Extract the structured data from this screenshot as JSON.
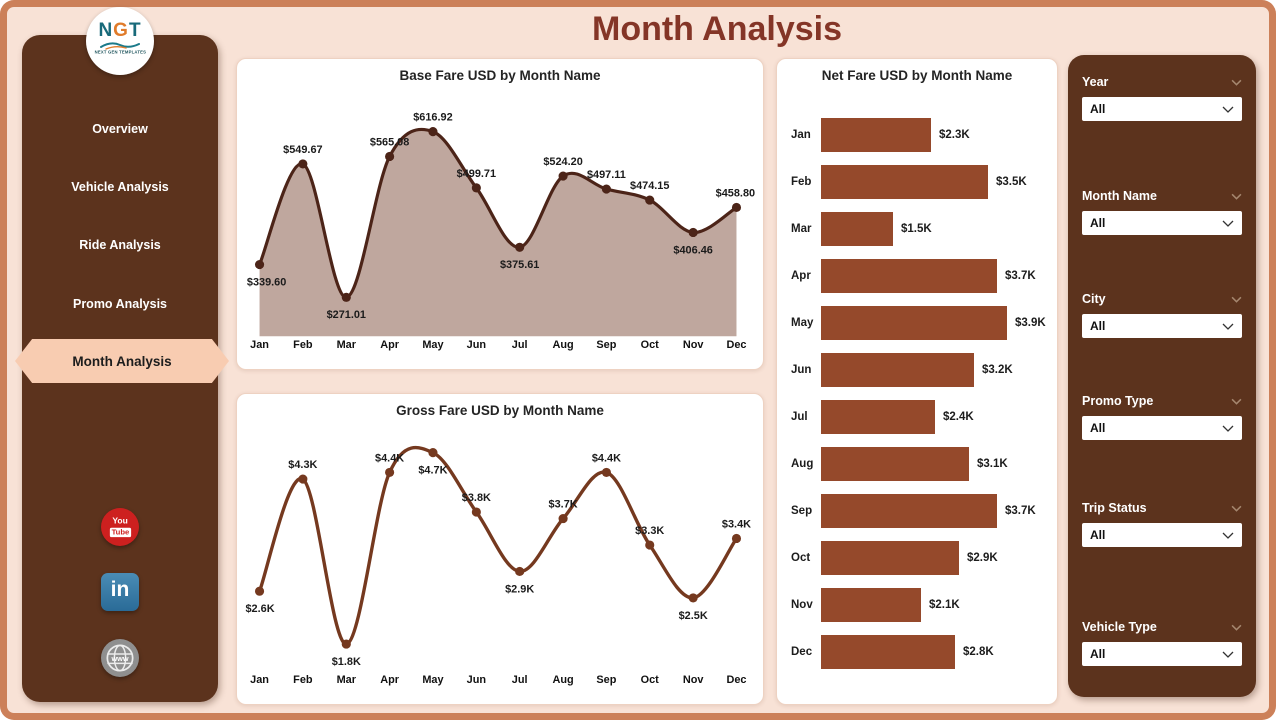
{
  "page": {
    "title": "Month Analysis"
  },
  "logo": {
    "letters": [
      "N",
      "G",
      "T"
    ],
    "caption": "NEXT GEN TEMPLATES"
  },
  "sidebar": {
    "items": [
      {
        "label": "Overview",
        "active": false
      },
      {
        "label": "Vehicle Analysis",
        "active": false
      },
      {
        "label": "Ride Analysis",
        "active": false
      },
      {
        "label": "Promo Analysis",
        "active": false
      },
      {
        "label": "Month Analysis",
        "active": true
      }
    ]
  },
  "socials": {
    "youtube_line1": "You",
    "youtube_line2": "Tube",
    "linkedin_text": "in",
    "website_text": "www"
  },
  "filters": [
    {
      "label": "Year",
      "value": "All"
    },
    {
      "label": "Month Name",
      "value": "All"
    },
    {
      "label": "City",
      "value": "All"
    },
    {
      "label": "Promo Type",
      "value": "All"
    },
    {
      "label": "Trip Status",
      "value": "All"
    },
    {
      "label": "Vehicle Type",
      "value": "All"
    }
  ],
  "colors": {
    "frame": "#cc8059",
    "page_bg": "#f8e2d6",
    "panel": "#5c331d",
    "active_nav": "#f8ccb1",
    "title": "#843527",
    "bar": "#95492b",
    "base_line": "#4c2418",
    "area_fill": "#bfa79e",
    "gross_line": "#75391f"
  },
  "chart_data": [
    {
      "id": "base-fare",
      "type": "area",
      "title": "Base Fare USD by Month Name",
      "xlabel": "",
      "ylabel": "Base Fare USD",
      "categories": [
        "Jan",
        "Feb",
        "Mar",
        "Apr",
        "May",
        "Jun",
        "Jul",
        "Aug",
        "Sep",
        "Oct",
        "Nov",
        "Dec"
      ],
      "values": [
        339.6,
        549.67,
        271.01,
        565.08,
        616.92,
        499.71,
        375.61,
        524.2,
        497.11,
        474.15,
        406.46,
        458.8
      ],
      "labels": [
        "$339.60",
        "$549.67",
        "$271.01",
        "$565.08",
        "$616.92",
        "$499.71",
        "$375.61",
        "$524.20",
        "$497.11",
        "$474.15",
        "$406.46",
        "$458.80"
      ],
      "label_sides": [
        "below",
        "above",
        "below",
        "above",
        "above",
        "above",
        "below",
        "above",
        "above",
        "above",
        "below",
        "above"
      ],
      "ylim": [
        190,
        640
      ],
      "grid": false,
      "legend": false,
      "fill_area": true,
      "line_color": "#4c2418",
      "area_color": "#bfa79e"
    },
    {
      "id": "gross-fare",
      "type": "line",
      "title": "Gross Fare USD by Month Name",
      "xlabel": "",
      "ylabel": "Gross Fare USD",
      "categories": [
        "Jan",
        "Feb",
        "Mar",
        "Apr",
        "May",
        "Jun",
        "Jul",
        "Aug",
        "Sep",
        "Oct",
        "Nov",
        "Dec"
      ],
      "values": [
        2.6,
        4.3,
        1.8,
        4.4,
        4.7,
        3.8,
        2.9,
        3.7,
        4.4,
        3.3,
        2.5,
        3.4
      ],
      "labels": [
        "$2.6K",
        "$4.3K",
        "$1.8K",
        "$4.4K",
        "$4.7K",
        "$3.8K",
        "$2.9K",
        "$3.7K",
        "$4.4K",
        "$3.3K",
        "$2.5K",
        "$3.4K"
      ],
      "label_sides": [
        "below",
        "above",
        "below",
        "above",
        "below",
        "above",
        "below",
        "above",
        "above",
        "above",
        "below",
        "above"
      ],
      "ylim": [
        1.6,
        4.85
      ],
      "grid": false,
      "legend": false,
      "fill_area": false,
      "line_color": "#75391f",
      "area_color": null
    },
    {
      "id": "net-fare",
      "type": "bar",
      "title": "Net Fare USD by Month Name",
      "xlabel": "Net Fare USD",
      "ylabel": "",
      "orientation": "horizontal",
      "categories": [
        "Jan",
        "Feb",
        "Mar",
        "Apr",
        "May",
        "Jun",
        "Jul",
        "Aug",
        "Sep",
        "Oct",
        "Nov",
        "Dec"
      ],
      "values": [
        2.3,
        3.5,
        1.5,
        3.7,
        3.9,
        3.2,
        2.4,
        3.1,
        3.7,
        2.9,
        2.1,
        2.8
      ],
      "labels": [
        "$2.3K",
        "$3.5K",
        "$1.5K",
        "$3.7K",
        "$3.9K",
        "$3.2K",
        "$2.4K",
        "$3.1K",
        "$3.7K",
        "$2.9K",
        "$2.1K",
        "$2.8K"
      ],
      "xlim": [
        0,
        3.9
      ],
      "grid": false,
      "legend": false,
      "bar_color": "#95492b"
    }
  ]
}
